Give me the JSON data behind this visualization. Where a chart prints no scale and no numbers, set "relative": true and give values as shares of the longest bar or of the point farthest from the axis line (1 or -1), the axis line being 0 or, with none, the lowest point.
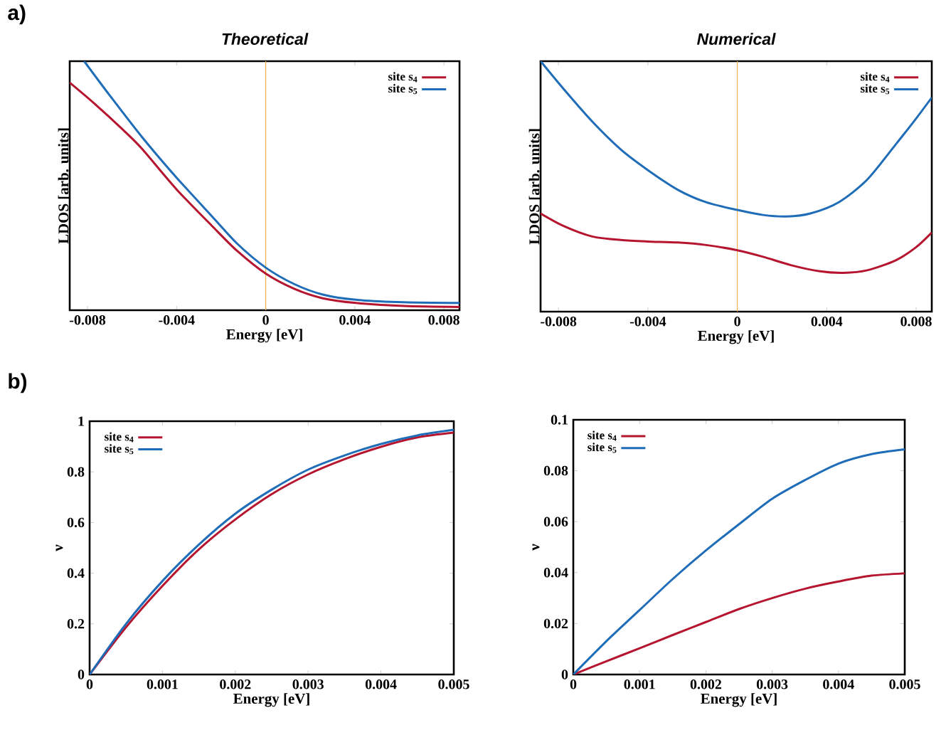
{
  "chart_data": [
    {
      "type": "line",
      "title": "Theoretical",
      "xlabel": "Energy [eV]",
      "ylabel": "LDOS [arb. units]",
      "relative": true,
      "legend": "top right",
      "annotations": [
        "a)"
      ],
      "xlim": [
        -0.0088,
        0.0087
      ],
      "xticks": [
        -0.008,
        -0.004,
        0,
        0.004,
        0.008
      ],
      "ref_lines": [
        {
          "axis": "x",
          "value": 0,
          "color": "#f2b24c"
        }
      ],
      "series": [
        {
          "name": "site s$_{4}$",
          "color": "#b5152f",
          "x": [
            -0.0088,
            -0.00768,
            -0.0064,
            -0.00555,
            -0.00401,
            -0.00235,
            -0.00128,
            0,
            0.00128,
            0.00256,
            0.00405,
            0.00619,
            0.0087
          ],
          "values": [
            0.914,
            0.829,
            0.724,
            0.648,
            0.486,
            0.333,
            0.238,
            0.147,
            0.086,
            0.048,
            0.029,
            0.017,
            0.013
          ]
        },
        {
          "name": "site s$_{5}$",
          "color": "#1f6db8",
          "x": [
            -0.00815,
            -0.00704,
            -0.00555,
            -0.00401,
            -0.00235,
            -0.00128,
            0,
            0.00128,
            0.00256,
            0.00405,
            0.00619,
            0.0087
          ],
          "values": [
            1.0,
            0.867,
            0.695,
            0.533,
            0.371,
            0.267,
            0.171,
            0.105,
            0.063,
            0.042,
            0.032,
            0.029
          ]
        }
      ]
    },
    {
      "type": "line",
      "title": "Numerical",
      "xlabel": "Energy [eV]",
      "ylabel": "LDOS [arb. units]",
      "relative": true,
      "legend": "top right",
      "xlim": [
        -0.0088,
        0.0087
      ],
      "xticks": [
        -0.008,
        -0.004,
        0,
        0.004,
        0.008
      ],
      "ref_lines": [
        {
          "axis": "x",
          "value": 0,
          "color": "#f2b24c"
        }
      ],
      "series": [
        {
          "name": "site s$_{4}$",
          "color": "#b5152f",
          "x": [
            -0.0088,
            -0.00777,
            -0.00649,
            -0.00522,
            -0.00403,
            -0.00267,
            -0.0014,
            0,
            0.00115,
            0.00242,
            0.00369,
            0.00475,
            0.00581,
            0.00709,
            0.00798,
            0.0087
          ],
          "values": [
            0.392,
            0.342,
            0.3,
            0.286,
            0.28,
            0.276,
            0.266,
            0.245,
            0.219,
            0.185,
            0.161,
            0.155,
            0.165,
            0.205,
            0.256,
            0.316
          ]
        },
        {
          "name": "site s$_{5}$",
          "color": "#1f6db8",
          "x": [
            -0.0088,
            -0.00777,
            -0.00649,
            -0.00522,
            -0.00403,
            -0.00267,
            -0.0014,
            0,
            0.00115,
            0.00221,
            0.00327,
            0.00454,
            0.00581,
            0.00709,
            0.00798,
            0.0087
          ],
          "values": [
            1.0,
            0.889,
            0.759,
            0.648,
            0.567,
            0.487,
            0.437,
            0.406,
            0.386,
            0.38,
            0.392,
            0.437,
            0.527,
            0.668,
            0.769,
            0.855
          ]
        }
      ]
    },
    {
      "type": "line",
      "xlabel": "Energy [eV]",
      "ylabel": "ν",
      "legend": "top left",
      "annotations": [
        "b)"
      ],
      "xlim": [
        0,
        0.005
      ],
      "xticks": [
        0,
        0.001,
        0.002,
        0.003,
        0.004,
        0.005
      ],
      "ylim": [
        0,
        1
      ],
      "yticks": [
        0,
        0.2,
        0.4,
        0.6,
        0.8,
        1
      ],
      "series": [
        {
          "name": "site s$_{4}$",
          "color": "#b5152f",
          "x": [
            0,
            0.0005,
            0.001,
            0.0015,
            0.002,
            0.0025,
            0.003,
            0.0035,
            0.004,
            0.0045,
            0.005
          ],
          "values": [
            0,
            0.187,
            0.35,
            0.494,
            0.612,
            0.712,
            0.79,
            0.85,
            0.899,
            0.936,
            0.955
          ]
        },
        {
          "name": "site s$_{5}$",
          "color": "#1f6db8",
          "x": [
            0,
            0.0005,
            0.001,
            0.0015,
            0.002,
            0.0025,
            0.003,
            0.0035,
            0.004,
            0.0045,
            0.005
          ],
          "values": [
            0,
            0.2,
            0.369,
            0.513,
            0.635,
            0.73,
            0.809,
            0.865,
            0.91,
            0.944,
            0.966
          ]
        }
      ]
    },
    {
      "type": "line",
      "xlabel": "Energy [eV]",
      "ylabel": "ν",
      "legend": "top left",
      "xlim": [
        0,
        0.005
      ],
      "xticks": [
        0,
        0.001,
        0.002,
        0.003,
        0.004,
        0.005
      ],
      "ylim": [
        0,
        0.1
      ],
      "yticks": [
        0,
        0.02,
        0.04,
        0.06,
        0.08,
        0.1
      ],
      "series": [
        {
          "name": "site s$_{4}$",
          "color": "#b5152f",
          "x": [
            0,
            0.0005,
            0.001,
            0.0015,
            0.002,
            0.0025,
            0.003,
            0.0035,
            0.004,
            0.0045,
            0.005
          ],
          "values": [
            0,
            0.0052,
            0.0103,
            0.0155,
            0.0206,
            0.0257,
            0.03,
            0.0337,
            0.0365,
            0.0388,
            0.0397
          ]
        },
        {
          "name": "site s$_{5}$",
          "color": "#1f6db8",
          "x": [
            0,
            0.0005,
            0.001,
            0.0015,
            0.002,
            0.0025,
            0.003,
            0.0035,
            0.004,
            0.0045,
            0.005
          ],
          "values": [
            0,
            0.0131,
            0.0253,
            0.0375,
            0.0487,
            0.059,
            0.069,
            0.0764,
            0.0828,
            0.0865,
            0.0884
          ]
        }
      ]
    }
  ]
}
